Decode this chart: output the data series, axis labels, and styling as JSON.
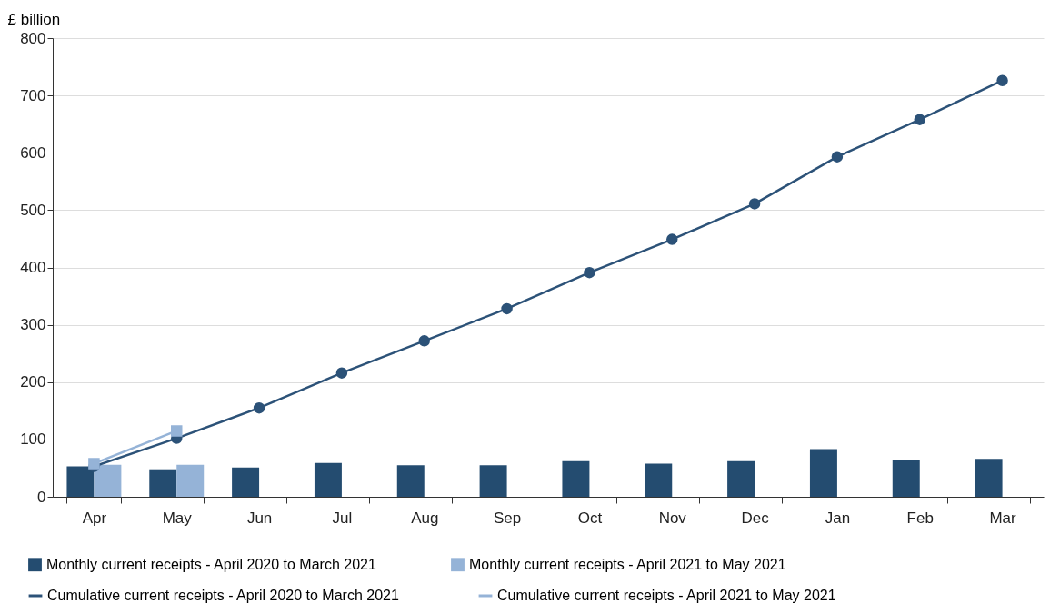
{
  "chart_data": {
    "type": "bar",
    "ylabel": "£ billion",
    "categories": [
      "Apr",
      "May",
      "Jun",
      "Jul",
      "Aug",
      "Sep",
      "Oct",
      "Nov",
      "Dec",
      "Jan",
      "Feb",
      "Mar"
    ],
    "ylim": [
      0,
      800
    ],
    "yticks": [
      0,
      100,
      200,
      300,
      400,
      500,
      600,
      700,
      800
    ],
    "grid": "y",
    "legend": "bottom",
    "series": [
      {
        "name": "Monthly current receipts - April 2020 to March 2021",
        "color": "#244c70",
        "values": [
          53,
          48,
          51,
          59,
          55,
          55,
          62,
          58,
          62,
          83,
          65,
          66
        ]
      },
      {
        "name": "Monthly current receipts - April 2021 to May 2021",
        "color": "#95b3d7",
        "values": [
          56,
          56,
          null,
          null,
          null,
          null,
          null,
          null,
          null,
          null,
          null,
          null
        ]
      },
      {
        "name": "Cumulative current receipts - April 2020 to March 2021",
        "type": "line",
        "marker": "circle",
        "color": "#2c5278",
        "values": [
          53,
          102,
          155,
          216,
          272,
          328,
          391,
          449,
          511,
          593,
          658,
          726
        ]
      },
      {
        "name": "Cumulative current receipts - April 2021 to May 2021",
        "type": "line",
        "marker": "square",
        "color": "#95b3d7",
        "values": [
          58,
          115,
          null,
          null,
          null,
          null,
          null,
          null,
          null,
          null,
          null,
          null
        ]
      }
    ]
  }
}
